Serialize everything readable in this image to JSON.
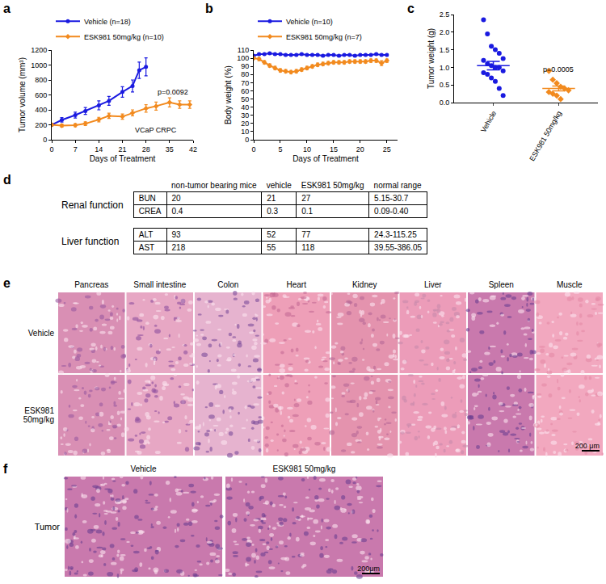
{
  "panel_labels": [
    "a",
    "b",
    "c",
    "d",
    "e",
    "f"
  ],
  "chart_data": [
    {
      "type": "line",
      "x_label": "Days of Treatment",
      "y_label": "Tumor volume (mm³)",
      "xlim": [
        0,
        42
      ],
      "xticks": [
        0,
        7,
        14,
        21,
        28,
        35,
        42
      ],
      "ylim": [
        0,
        1200
      ],
      "yticks": [
        0,
        200,
        400,
        600,
        800,
        1000,
        1200
      ],
      "grid": false,
      "legend": "top-left",
      "series": [
        {
          "name": "Vehicle (n=18)",
          "color": "#1a1ae0",
          "marker": "circle",
          "x": [
            0,
            3,
            7,
            10,
            14,
            17,
            21,
            24,
            26,
            28
          ],
          "values": [
            200,
            265,
            330,
            385,
            460,
            520,
            640,
            720,
            930,
            975
          ],
          "errors": [
            15,
            30,
            40,
            45,
            60,
            60,
            70,
            80,
            110,
            120
          ]
        },
        {
          "name": "ESK981 50mg/kg (n=10)",
          "color": "#f28a1e",
          "marker": "diamond",
          "x": [
            0,
            3,
            7,
            10,
            14,
            17,
            21,
            24,
            28,
            31,
            35,
            38,
            41
          ],
          "values": [
            200,
            190,
            195,
            215,
            270,
            320,
            310,
            360,
            420,
            450,
            500,
            470,
            470
          ],
          "errors": [
            15,
            20,
            20,
            25,
            30,
            35,
            35,
            40,
            50,
            55,
            60,
            50,
            50
          ]
        }
      ],
      "annotations": [
        {
          "text": "p=0.0092",
          "x": 36,
          "y": 640
        },
        {
          "text": "VCaP CRPC",
          "x": 31,
          "y": 130
        }
      ]
    },
    {
      "type": "line",
      "x_label": "Days of Treatment",
      "y_label": "Body weight (%)",
      "xlim": [
        0,
        27
      ],
      "xticks": [
        0,
        5,
        10,
        15,
        20,
        25
      ],
      "ylim": [
        0,
        110
      ],
      "yticks": [
        0,
        10,
        20,
        30,
        40,
        50,
        60,
        70,
        80,
        90,
        100,
        110
      ],
      "grid": false,
      "legend": "top-left",
      "series": [
        {
          "name": "Vehicle (n=10)",
          "color": "#1a1ae0",
          "marker": "circle",
          "x": [
            0,
            1,
            2,
            3,
            4,
            5,
            6,
            7,
            8,
            9,
            10,
            11,
            12,
            13,
            14,
            15,
            16,
            17,
            18,
            19,
            20,
            21,
            22,
            23,
            24,
            25
          ],
          "values": [
            103,
            105,
            105,
            106,
            105,
            105,
            104,
            104,
            104,
            105,
            104,
            104,
            104,
            103,
            104,
            104,
            103,
            104,
            104,
            103,
            104,
            104,
            104,
            105,
            104,
            104
          ],
          "errors": [
            1,
            1,
            1,
            1,
            1,
            1,
            1,
            1,
            1,
            1,
            1,
            1,
            1,
            1,
            1,
            1,
            1,
            1,
            1,
            1,
            1,
            1,
            1,
            1,
            1,
            1
          ]
        },
        {
          "name": "ESK981 50mg/kg (n=7)",
          "color": "#f28a1e",
          "marker": "diamond",
          "x": [
            0,
            1,
            2,
            3,
            4,
            5,
            6,
            7,
            8,
            9,
            10,
            11,
            12,
            13,
            14,
            15,
            16,
            17,
            18,
            19,
            20,
            21,
            22,
            23,
            24,
            25
          ],
          "values": [
            100,
            99,
            95,
            91,
            88,
            85,
            84,
            83,
            84,
            86,
            88,
            90,
            92,
            93,
            94,
            95,
            95,
            95,
            96,
            96,
            96,
            96,
            97,
            97,
            94,
            97
          ],
          "errors": [
            1,
            2,
            2,
            2,
            2,
            2,
            2,
            2,
            2,
            2,
            2,
            2,
            2,
            2,
            2,
            2,
            2,
            2,
            2,
            2,
            2,
            2,
            2,
            2,
            3,
            2
          ]
        }
      ]
    },
    {
      "type": "scatter",
      "y_label": "Tumor weight (g)",
      "categories": [
        "Vehicle",
        "ESK981 50mg/kg"
      ],
      "ylim": [
        0,
        2.5
      ],
      "yticks": [
        {
          "value": 0,
          "label": "0.0"
        },
        0.5,
        {
          "value": 1,
          "label": "1.0"
        },
        1.5,
        {
          "value": 2,
          "label": "2.0"
        },
        2.5
      ],
      "grid": false,
      "groups": [
        {
          "name": "Vehicle",
          "color": "#1a1ae0",
          "marker": "circle",
          "values": [
            2.35,
            1.95,
            1.6,
            1.5,
            1.4,
            1.25,
            1.2,
            1.1,
            1.05,
            1.0,
            1.0,
            0.9,
            0.85,
            0.8,
            0.7,
            0.6,
            0.4,
            0.2
          ],
          "mean": 1.05,
          "sem": 0.12
        },
        {
          "name": "ESK981 50mg/kg",
          "color": "#f28a1e",
          "marker": "diamond",
          "values": [
            0.9,
            0.65,
            0.55,
            0.45,
            0.4,
            0.35,
            0.3,
            0.25,
            0.2,
            0.1
          ],
          "mean": 0.4,
          "sem": 0.07
        }
      ],
      "annotations": [
        {
          "text": "p=0.0005",
          "x": 1,
          "y": 0.95
        }
      ]
    }
  ],
  "table": {
    "columns": [
      "non-tumor bearing mice",
      "vehicle",
      "ESK981 50mg/kg",
      "normal range"
    ],
    "groups": [
      {
        "name": "Renal function",
        "rows": [
          {
            "label": "BUN",
            "cells": [
              20,
              21,
              27,
              "5.15-30.7"
            ]
          },
          {
            "label": "CREA",
            "cells": [
              0.4,
              0.3,
              0.1,
              "0.09-0.40"
            ]
          }
        ]
      },
      {
        "name": "Liver function",
        "rows": [
          {
            "label": "ALT",
            "cells": [
              93,
              52,
              77,
              "24.3-115.25"
            ]
          },
          {
            "label": "AST",
            "cells": [
              218,
              55,
              118,
              "39.55-386.05"
            ]
          }
        ]
      }
    ]
  },
  "histology": {
    "columns": [
      "Pancreas",
      "Small intestine",
      "Colon",
      "Heart",
      "Kidney",
      "Liver",
      "Spleen",
      "Muscle"
    ],
    "rows": [
      "Vehicle",
      "ESK981 50mg/kg"
    ],
    "scale_bar": "200 μm"
  },
  "tumor_histology": {
    "columns": [
      "Vehicle",
      "ESK981 50mg/kg"
    ],
    "rows": [
      "Tumor"
    ],
    "scale_bar": "200μm"
  }
}
